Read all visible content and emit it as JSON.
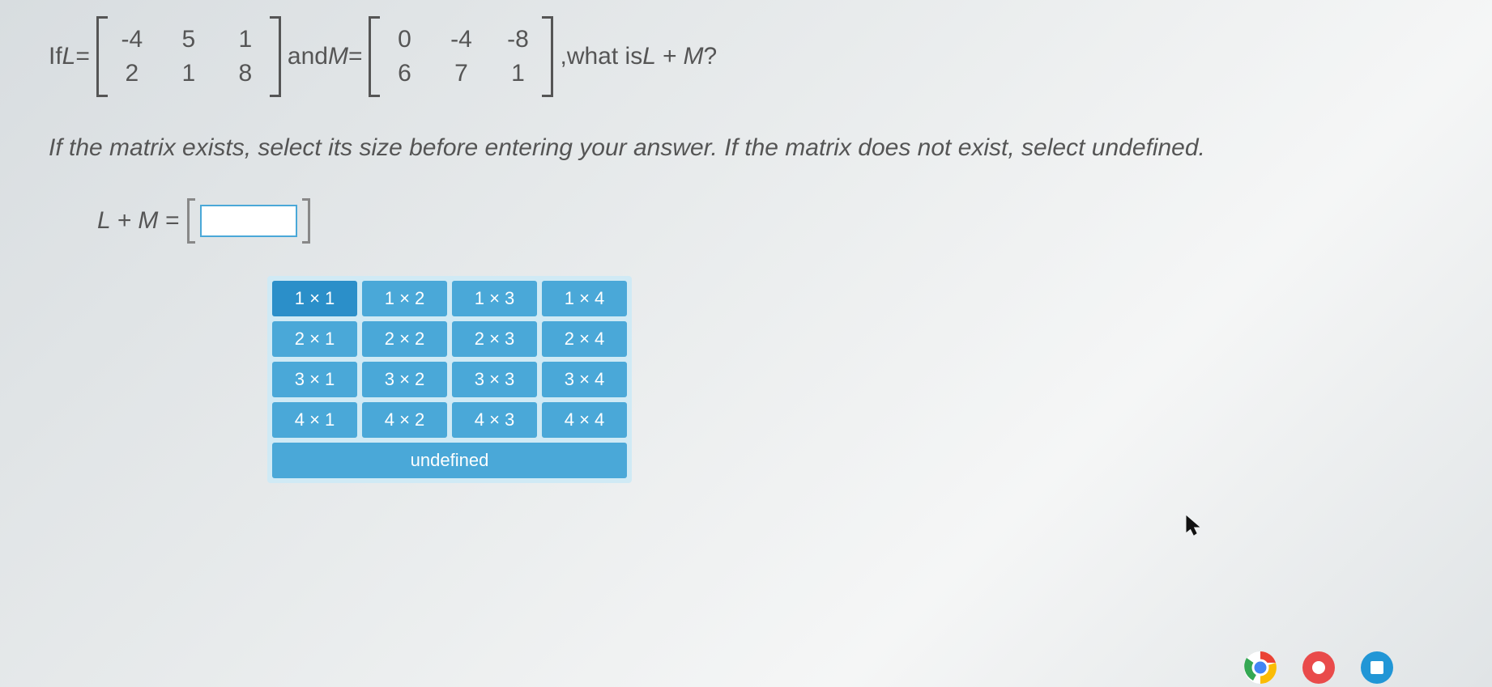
{
  "question": {
    "prefix": "If ",
    "var1": "L",
    "eq": " = ",
    "matrixL": {
      "rows": [
        [
          "-4",
          "5",
          "1"
        ],
        [
          "2",
          "1",
          "8"
        ]
      ]
    },
    "and": " and ",
    "var2": "M",
    "matrixM": {
      "rows": [
        [
          "0",
          "-4",
          "-8"
        ],
        [
          "6",
          "7",
          "1"
        ]
      ]
    },
    "suffix_comma": ", ",
    "suffix_text": "what is ",
    "expr": "L + M",
    "qmark": "?"
  },
  "instructions": "If the matrix exists, select its size before entering your answer. If the matrix does not exist, select undefined.",
  "answer": {
    "label": "L + M = "
  },
  "selector": {
    "rows": [
      [
        {
          "label": "1 × 1",
          "selected": true
        },
        {
          "label": "1 × 2",
          "selected": false
        },
        {
          "label": "1 × 3",
          "selected": false
        },
        {
          "label": "1 × 4",
          "selected": false
        }
      ],
      [
        {
          "label": "2 × 1",
          "selected": false
        },
        {
          "label": "2 × 2",
          "selected": false
        },
        {
          "label": "2 × 3",
          "selected": false
        },
        {
          "label": "2 × 4",
          "selected": false
        }
      ],
      [
        {
          "label": "3 × 1",
          "selected": false
        },
        {
          "label": "3 × 2",
          "selected": false
        },
        {
          "label": "3 × 3",
          "selected": false
        },
        {
          "label": "3 × 4",
          "selected": false
        }
      ],
      [
        {
          "label": "4 × 1",
          "selected": false
        },
        {
          "label": "4 × 2",
          "selected": false
        },
        {
          "label": "4 × 3",
          "selected": false
        },
        {
          "label": "4 × 4",
          "selected": false
        }
      ]
    ],
    "undefined_label": "undefined"
  },
  "colors": {
    "button_bg": "#4aa8d8",
    "button_selected_bg": "#2b8fc9",
    "panel_bg": "#d0eaf5",
    "text": "#555555"
  }
}
